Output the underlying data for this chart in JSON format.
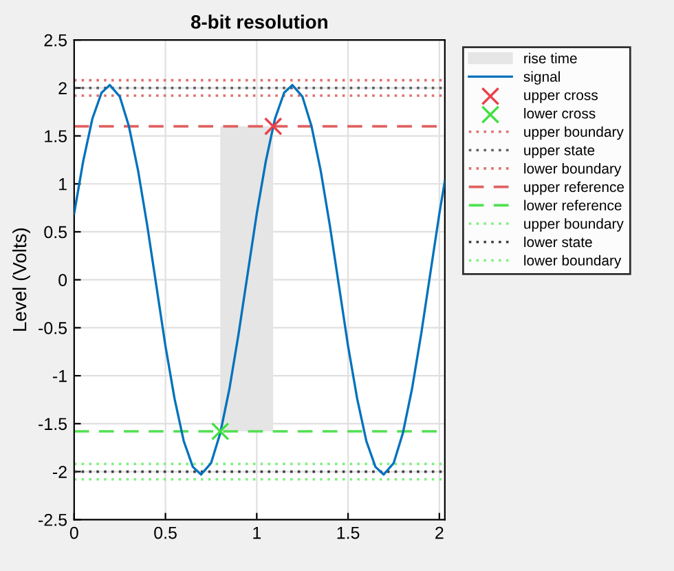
{
  "chart_data": {
    "type": "line",
    "title": "8-bit resolution",
    "ylabel": "Level (Volts)",
    "xlim": [
      0,
      2.03
    ],
    "xticks": [
      0,
      0.5,
      1,
      1.5,
      2
    ],
    "ylim": [
      -2.5,
      2.5
    ],
    "yticks": [
      -2.5,
      -2,
      -1.5,
      -1,
      -0.5,
      0,
      0.5,
      1,
      1.5,
      2,
      2.5
    ],
    "grid": true,
    "legend": "right",
    "series": [
      {
        "name": "signal",
        "color": "#0072bd",
        "x": [
          0,
          0.05,
          0.1,
          0.15,
          0.195,
          0.25,
          0.3,
          0.35,
          0.4,
          0.45,
          0.5,
          0.55,
          0.6,
          0.65,
          0.695,
          0.75,
          0.8,
          0.85,
          0.9,
          0.95,
          1.0,
          1.05,
          1.1,
          1.15,
          1.195,
          1.25,
          1.3,
          1.35,
          1.4,
          1.45,
          1.5,
          1.55,
          1.6,
          1.65,
          1.695,
          1.75,
          1.8,
          1.85,
          1.9,
          1.95,
          2.0,
          2.03
        ],
        "values": [
          0.69,
          1.24,
          1.68,
          1.95,
          2.03,
          1.91,
          1.6,
          1.14,
          0.57,
          -0.06,
          -0.69,
          -1.24,
          -1.68,
          -1.95,
          -2.03,
          -1.91,
          -1.6,
          -1.14,
          -0.57,
          0.06,
          0.69,
          1.24,
          1.68,
          1.95,
          2.03,
          1.91,
          1.6,
          1.14,
          0.57,
          -0.06,
          -0.69,
          -1.24,
          -1.68,
          -1.95,
          -2.03,
          -1.91,
          -1.6,
          -1.14,
          -0.57,
          0.06,
          0.69,
          1.03
        ]
      },
      {
        "name": "upper cross",
        "type": "scatter",
        "marker": "cross",
        "color": "#e8404a",
        "x": [
          1.09
        ],
        "values": [
          1.6
        ]
      },
      {
        "name": "lower cross",
        "type": "scatter",
        "marker": "cross",
        "color": "#40e040",
        "x": [
          0.8
        ],
        "values": [
          -1.58
        ]
      }
    ],
    "bands": [
      {
        "axis": "x",
        "from": 0.8,
        "to": 1.09,
        "label": "rise time",
        "color": "#e5e5e5"
      }
    ],
    "ref_lines": [
      {
        "axis": "y",
        "value": 2.08,
        "label": "upper boundary",
        "color": "#e07070",
        "line_style": "dotted"
      },
      {
        "axis": "y",
        "value": 2.0,
        "label": "upper state",
        "color": "#606060",
        "line_style": "dotted"
      },
      {
        "axis": "y",
        "value": 1.92,
        "label": "lower boundary",
        "color": "#e07070",
        "line_style": "dotted"
      },
      {
        "axis": "y",
        "value": 1.6,
        "label": "upper reference",
        "color": "#e06060",
        "line_style": "dashed"
      },
      {
        "axis": "y",
        "value": -1.58,
        "label": "lower reference",
        "color": "#50e050",
        "line_style": "dashed"
      },
      {
        "axis": "y",
        "value": -1.92,
        "label": "upper boundary",
        "color": "#80f080",
        "line_style": "dotted"
      },
      {
        "axis": "y",
        "value": -2.0,
        "label": "lower state",
        "color": "#404040",
        "line_style": "dotted"
      },
      {
        "axis": "y",
        "value": -2.08,
        "label": "lower boundary",
        "color": "#80f080",
        "line_style": "dotted"
      }
    ]
  }
}
